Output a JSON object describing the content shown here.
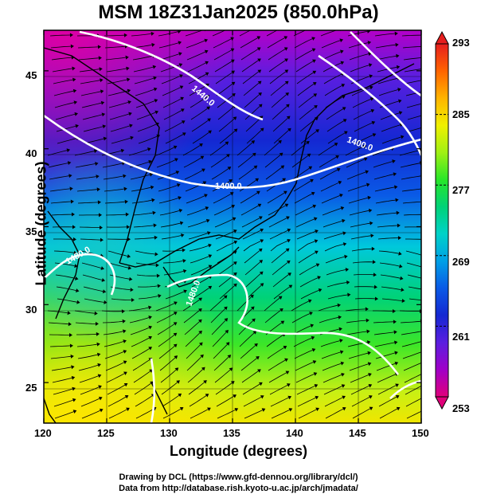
{
  "title": "MSM 18Z31Jan2025 (850.0hPa)",
  "map": {
    "x_axis_label": "Longitude (degrees)",
    "y_axis_label": "Latitude  (degrees)",
    "x_ticks": [
      "120",
      "125",
      "130",
      "135",
      "140",
      "145",
      "150"
    ],
    "y_ticks": [
      "25",
      "30",
      "35",
      "40",
      "45"
    ],
    "lon_range": [
      120,
      150
    ],
    "lat_range": [
      22.4,
      47.6
    ],
    "contour_labels": [
      "1440.0",
      "1400.0",
      "1400.0",
      "1480.0",
      "1480.0"
    ]
  },
  "colorbar": {
    "ticks": [
      "293",
      "285",
      "277",
      "269",
      "261",
      "253"
    ],
    "range": [
      253,
      293
    ],
    "colors": [
      "#e0007a",
      "#a000c8",
      "#5a1ee0",
      "#1428d2",
      "#0a5ae6",
      "#00a0e6",
      "#00d2c8",
      "#00d278",
      "#28e628",
      "#a0f014",
      "#f0f000",
      "#ffb400",
      "#ff6400",
      "#e61e1e"
    ]
  },
  "footer": {
    "line1": "Drawing by DCL (https://www.gfd-dennou.org/library/dcl/)",
    "line2": "Data from http://database.rish.kyoto-u.ac.jp/arch/jmadata/"
  }
}
